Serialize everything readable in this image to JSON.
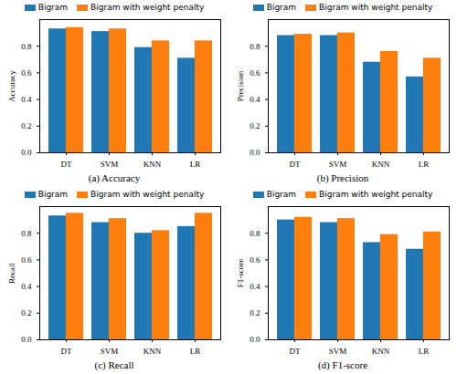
{
  "chart_data": [
    {
      "type": "bar",
      "caption": "(a) Accuracy",
      "y_label": "Accuracy",
      "categories": [
        "DT",
        "SVM",
        "KNN",
        "LR"
      ],
      "series": [
        {
          "name": "Bigram",
          "color": "#1f77b4",
          "values": [
            0.93,
            0.91,
            0.79,
            0.71
          ]
        },
        {
          "name": "Bigram with weight penalty",
          "color": "#ff7f0e",
          "values": [
            0.94,
            0.93,
            0.84,
            0.84
          ]
        }
      ],
      "ylim": [
        0,
        1.0
      ],
      "yticks": [
        {
          "value": 0,
          "label": "0.0"
        },
        0.2,
        0.4,
        0.6,
        0.8
      ],
      "legend": "top"
    },
    {
      "type": "bar",
      "caption": "(b) Precision",
      "y_label": "Precision",
      "categories": [
        "DT",
        "SVM",
        "KNN",
        "LR"
      ],
      "series": [
        {
          "name": "Bigram",
          "color": "#1f77b4",
          "values": [
            0.88,
            0.88,
            0.68,
            0.57
          ]
        },
        {
          "name": "Bigram with weight penalty",
          "color": "#ff7f0e",
          "values": [
            0.89,
            0.9,
            0.76,
            0.71
          ]
        }
      ],
      "ylim": [
        0,
        1.0
      ],
      "yticks": [
        {
          "value": 0,
          "label": "0.0"
        },
        0.2,
        0.4,
        0.6,
        0.8
      ],
      "legend": "top"
    },
    {
      "type": "bar",
      "caption": "(c) Recall",
      "y_label": "Recall",
      "categories": [
        "DT",
        "SVM",
        "KNN",
        "LR"
      ],
      "series": [
        {
          "name": "Bigram",
          "color": "#1f77b4",
          "values": [
            0.93,
            0.88,
            0.8,
            0.85
          ]
        },
        {
          "name": "Bigram with weight penalty",
          "color": "#ff7f0e",
          "values": [
            0.95,
            0.91,
            0.82,
            0.95
          ]
        }
      ],
      "ylim": [
        0,
        1.0
      ],
      "yticks": [
        {
          "value": 0,
          "label": "0.0"
        },
        0.2,
        0.4,
        0.6,
        0.8
      ],
      "legend": "top"
    },
    {
      "type": "bar",
      "caption": "(d) F1-score",
      "y_label": "F1-score",
      "categories": [
        "DT",
        "SVM",
        "KNN",
        "LR"
      ],
      "series": [
        {
          "name": "Bigram",
          "color": "#1f77b4",
          "values": [
            0.9,
            0.88,
            0.73,
            0.68
          ]
        },
        {
          "name": "Bigram with weight penalty",
          "color": "#ff7f0e",
          "values": [
            0.92,
            0.91,
            0.79,
            0.81
          ]
        }
      ],
      "ylim": [
        0,
        1.0
      ],
      "yticks": [
        {
          "value": 0,
          "label": "0.0"
        },
        0.2,
        0.4,
        0.6,
        0.8
      ],
      "legend": "top"
    }
  ]
}
